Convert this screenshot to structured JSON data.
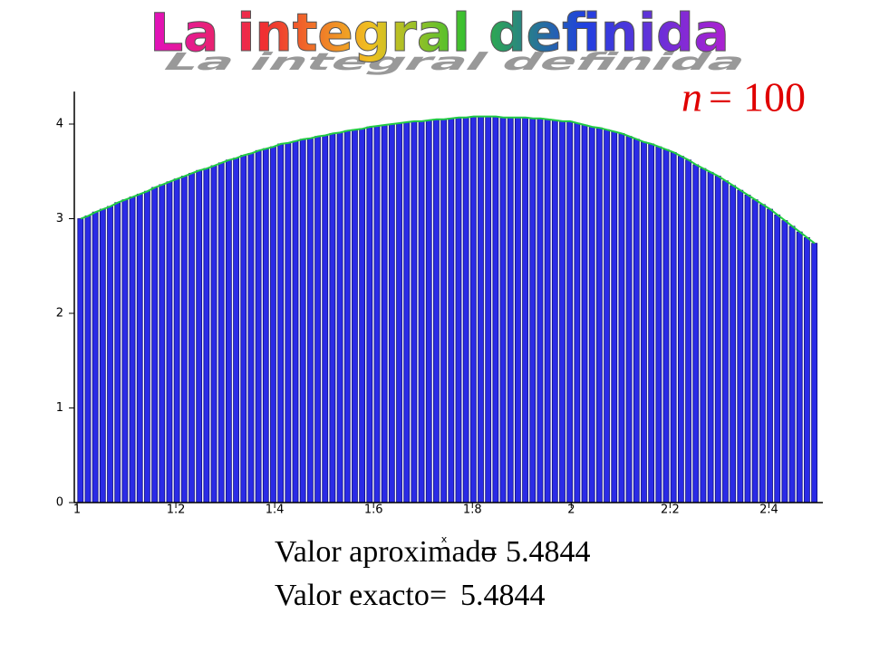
{
  "chart_data": {
    "type": "bar",
    "title": "La integral definida",
    "n_symbol": "n",
    "equals": "=",
    "n_value": 100,
    "xlabel": "x",
    "xlim": [
      1,
      2.5
    ],
    "xticks": [
      1,
      1.2,
      1.4,
      1.6,
      1.8,
      2,
      2.2,
      2.4
    ],
    "ylim": [
      0,
      4.2
    ],
    "yticks": [
      0,
      1,
      2,
      3,
      4
    ],
    "color": "#2b2be6",
    "curve_color": "#22cc44",
    "values": [
      3.0,
      3.03,
      3.07,
      3.1,
      3.13,
      3.17,
      3.2,
      3.23,
      3.26,
      3.29,
      3.33,
      3.36,
      3.39,
      3.42,
      3.45,
      3.48,
      3.51,
      3.53,
      3.56,
      3.59,
      3.62,
      3.64,
      3.67,
      3.69,
      3.72,
      3.74,
      3.76,
      3.79,
      3.8,
      3.82,
      3.84,
      3.85,
      3.87,
      3.88,
      3.9,
      3.91,
      3.93,
      3.94,
      3.95,
      3.97,
      3.98,
      3.99,
      4.0,
      4.01,
      4.02,
      4.03,
      4.03,
      4.04,
      4.05,
      4.05,
      4.06,
      4.07,
      4.07,
      4.08,
      4.08,
      4.08,
      4.08,
      4.07,
      4.07,
      4.07,
      4.07,
      4.06,
      4.06,
      4.05,
      4.04,
      4.03,
      4.03,
      4.01,
      3.99,
      3.97,
      3.96,
      3.94,
      3.92,
      3.9,
      3.87,
      3.84,
      3.81,
      3.79,
      3.76,
      3.73,
      3.7,
      3.66,
      3.62,
      3.57,
      3.53,
      3.49,
      3.45,
      3.4,
      3.35,
      3.3,
      3.25,
      3.2,
      3.15,
      3.1,
      3.04,
      2.98,
      2.92,
      2.86,
      2.8,
      2.74
    ],
    "approx_label": "Valor aproximado",
    "approx_value": 5.4844,
    "exact_label": "Valor exacto",
    "exact_value": 5.4844
  }
}
